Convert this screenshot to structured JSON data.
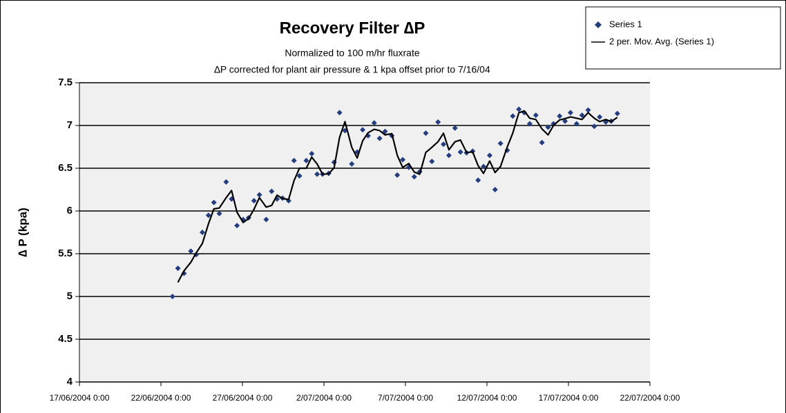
{
  "chart_data": {
    "type": "scatter",
    "title": "Recovery Filter ∆P",
    "subtitle": [
      "Normalized to 100 m/hr fluxrate",
      "∆P corrected for plant air pressure & 1 kpa offset prior to 7/16/04"
    ],
    "y_label": "∆ P (kpa)",
    "x": [
      "2004-06-22T17:00",
      "2004-06-23T01:00",
      "2004-06-23T10:00",
      "2004-06-23T20:00",
      "2004-06-24T04:00",
      "2004-06-24T13:00",
      "2004-06-24T22:00",
      "2004-06-25T06:00",
      "2004-06-25T14:00",
      "2004-06-26T00:00",
      "2004-06-26T08:00",
      "2004-06-26T16:00",
      "2004-06-27T01:00",
      "2004-06-27T09:00",
      "2004-06-27T17:00",
      "2004-06-28T01:00",
      "2004-06-28T11:00",
      "2004-06-28T19:00",
      "2004-06-29T03:00",
      "2004-06-29T11:00",
      "2004-06-29T20:00",
      "2004-06-30T04:00",
      "2004-06-30T12:00",
      "2004-06-30T22:00",
      "2004-07-01T06:00",
      "2004-07-01T14:00",
      "2004-07-01T22:00",
      "2004-07-02T07:00",
      "2004-07-02T15:00",
      "2004-07-02T23:00",
      "2004-07-03T07:00",
      "2004-07-03T17:00",
      "2004-07-04T01:00",
      "2004-07-04T09:00",
      "2004-07-04T17:00",
      "2004-07-05T02:00",
      "2004-07-05T10:00",
      "2004-07-05T18:00",
      "2004-07-06T04:00",
      "2004-07-06T12:00",
      "2004-07-06T20:00",
      "2004-07-07T05:00",
      "2004-07-07T13:00",
      "2004-07-07T21:00",
      "2004-07-08T06:00",
      "2004-07-08T15:00",
      "2004-07-09T00:00",
      "2004-07-09T08:00",
      "2004-07-09T16:00",
      "2004-07-10T01:00",
      "2004-07-10T09:00",
      "2004-07-10T18:00",
      "2004-07-11T03:00",
      "2004-07-11T11:00",
      "2004-07-11T19:00",
      "2004-07-12T04:00",
      "2004-07-12T12:00",
      "2004-07-12T20:00",
      "2004-07-13T06:00",
      "2004-07-13T14:00",
      "2004-07-13T23:00",
      "2004-07-14T07:00",
      "2004-07-14T15:00",
      "2004-07-15T00:00",
      "2004-07-15T09:00",
      "2004-07-15T18:00",
      "2004-07-16T02:00",
      "2004-07-16T11:00",
      "2004-07-16T19:00",
      "2004-07-17T03:00",
      "2004-07-17T12:00",
      "2004-07-17T20:00",
      "2004-07-18T05:00",
      "2004-07-18T14:00",
      "2004-07-18T22:00",
      "2004-07-19T07:00",
      "2004-07-19T15:00",
      "2004-07-20T00:00"
    ],
    "series": [
      {
        "name": "Series 1",
        "color": "#233d7f",
        "mode": "markers",
        "values": [
          5.0,
          5.33,
          5.27,
          5.53,
          5.49,
          5.75,
          5.95,
          6.1,
          5.97,
          6.34,
          6.14,
          5.83,
          5.9,
          5.92,
          6.12,
          6.19,
          5.9,
          6.23,
          6.14,
          6.15,
          6.12,
          6.59,
          6.41,
          6.59,
          6.67,
          6.43,
          6.43,
          6.44,
          6.57,
          7.15,
          6.94,
          6.55,
          6.69,
          6.95,
          6.88,
          7.03,
          6.85,
          6.93,
          6.88,
          6.42,
          6.6,
          6.51,
          6.4,
          6.46,
          6.91,
          6.58,
          7.04,
          6.78,
          6.65,
          6.97,
          6.69,
          6.68,
          6.7,
          6.36,
          6.52,
          6.65,
          6.25,
          6.79,
          6.71,
          7.11,
          7.19,
          7.15,
          7.02,
          7.12,
          6.8,
          6.98,
          7.02,
          7.11,
          7.05,
          7.15,
          7.02,
          7.12,
          7.18,
          6.99,
          7.1,
          7.04,
          7.05,
          7.14
        ]
      },
      {
        "name": "2 per. Mov. Avg. (Series 1)",
        "color": "#000000",
        "mode": "line",
        "values": [
          null,
          5.165,
          5.3,
          5.4,
          5.51,
          5.62,
          5.85,
          6.025,
          6.035,
          6.155,
          6.24,
          5.985,
          5.865,
          5.91,
          6.02,
          6.155,
          6.045,
          6.065,
          6.185,
          6.145,
          6.135,
          6.355,
          6.5,
          6.5,
          6.63,
          6.55,
          6.43,
          6.435,
          6.505,
          6.86,
          7.045,
          6.745,
          6.62,
          6.82,
          6.915,
          6.955,
          6.94,
          6.89,
          6.905,
          6.65,
          6.51,
          6.555,
          6.455,
          6.43,
          6.685,
          6.745,
          6.81,
          6.91,
          6.715,
          6.81,
          6.83,
          6.685,
          6.69,
          6.53,
          6.44,
          6.585,
          6.45,
          6.52,
          6.75,
          6.91,
          7.15,
          7.17,
          7.085,
          7.07,
          6.96,
          6.89,
          7.0,
          7.065,
          7.08,
          7.1,
          7.085,
          7.07,
          7.15,
          7.085,
          7.045,
          7.07,
          7.045,
          7.095
        ]
      }
    ],
    "xlim": [
      "2004-06-17T00:00",
      "2004-07-22T00:00"
    ],
    "xticks": [
      {
        "value": "2004-06-17T00:00",
        "label": "17/06/2004 0:00"
      },
      {
        "value": "2004-06-22T00:00",
        "label": "22/06/2004 0:00"
      },
      {
        "value": "2004-06-27T00:00",
        "label": "27/06/2004 0:00"
      },
      {
        "value": "2004-07-02T00:00",
        "label": "2/07/2004 0:00"
      },
      {
        "value": "2004-07-07T00:00",
        "label": "7/07/2004 0:00"
      },
      {
        "value": "2004-07-12T00:00",
        "label": "12/07/2004 0:00"
      },
      {
        "value": "2004-07-17T00:00",
        "label": "17/07/2004 0:00"
      },
      {
        "value": "2004-07-22T00:00",
        "label": "22/07/2004 0:00"
      }
    ],
    "ylim": [
      4,
      7.5
    ],
    "yticks": [
      4,
      4.5,
      5,
      5.5,
      6,
      6.5,
      7,
      7.5
    ],
    "grid": true,
    "legend": "top-right",
    "plot_background": "#f0f0f0"
  }
}
